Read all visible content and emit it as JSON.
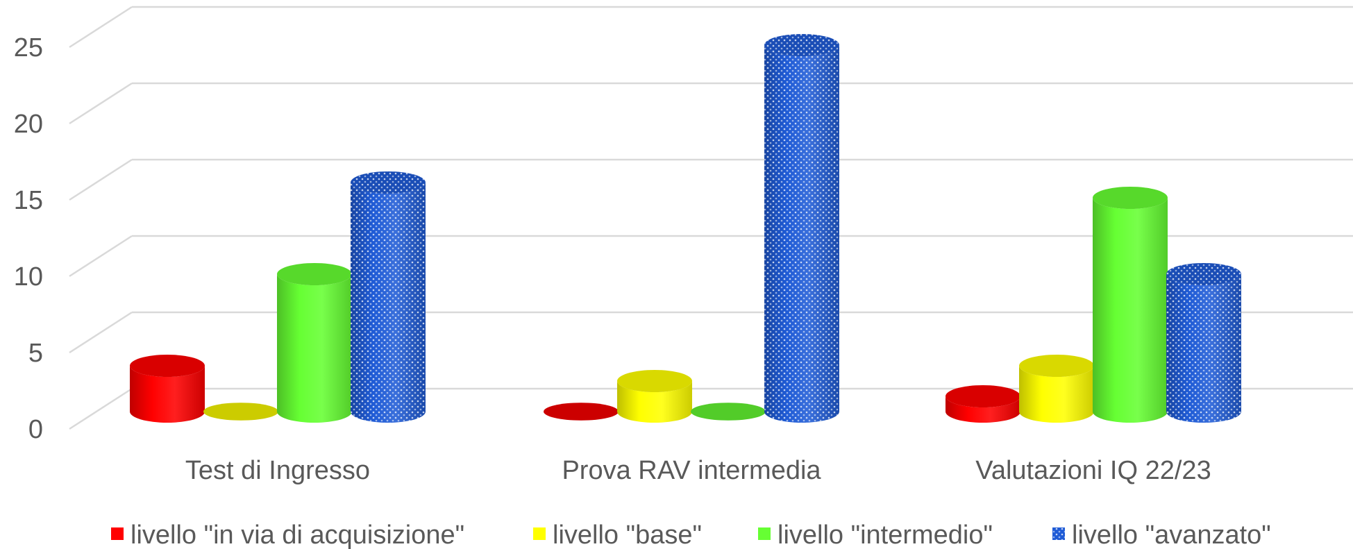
{
  "colors": {
    "grid": "#d9d9d9",
    "text": "#595959"
  },
  "chart_data": {
    "type": "bar",
    "variant": "3d-cylinder",
    "title": "",
    "xlabel": "",
    "ylabel": "",
    "ylim": [
      0,
      25
    ],
    "yticks": [
      0,
      5,
      10,
      15,
      20,
      25
    ],
    "grid": true,
    "legend_position": "bottom",
    "categories": [
      "Test di Ingresso",
      "Prova RAV intermedia",
      "Valutazioni IQ 22/23"
    ],
    "series": [
      {
        "name": "livello \"in via di acquisizione\"",
        "color": "#ff0000",
        "pattern": "solid",
        "values": [
          3,
          0,
          1
        ]
      },
      {
        "name": "livello \"base\"",
        "color": "#ffff00",
        "pattern": "solid",
        "values": [
          0,
          2,
          3
        ]
      },
      {
        "name": "livello \"intermedio\"",
        "color": "#66ff33",
        "pattern": "solid",
        "values": [
          9,
          0,
          14
        ]
      },
      {
        "name": "livello \"avanzato\"",
        "color": "#1f5bd6",
        "pattern": "dotted",
        "values": [
          15,
          24,
          9
        ]
      }
    ]
  }
}
